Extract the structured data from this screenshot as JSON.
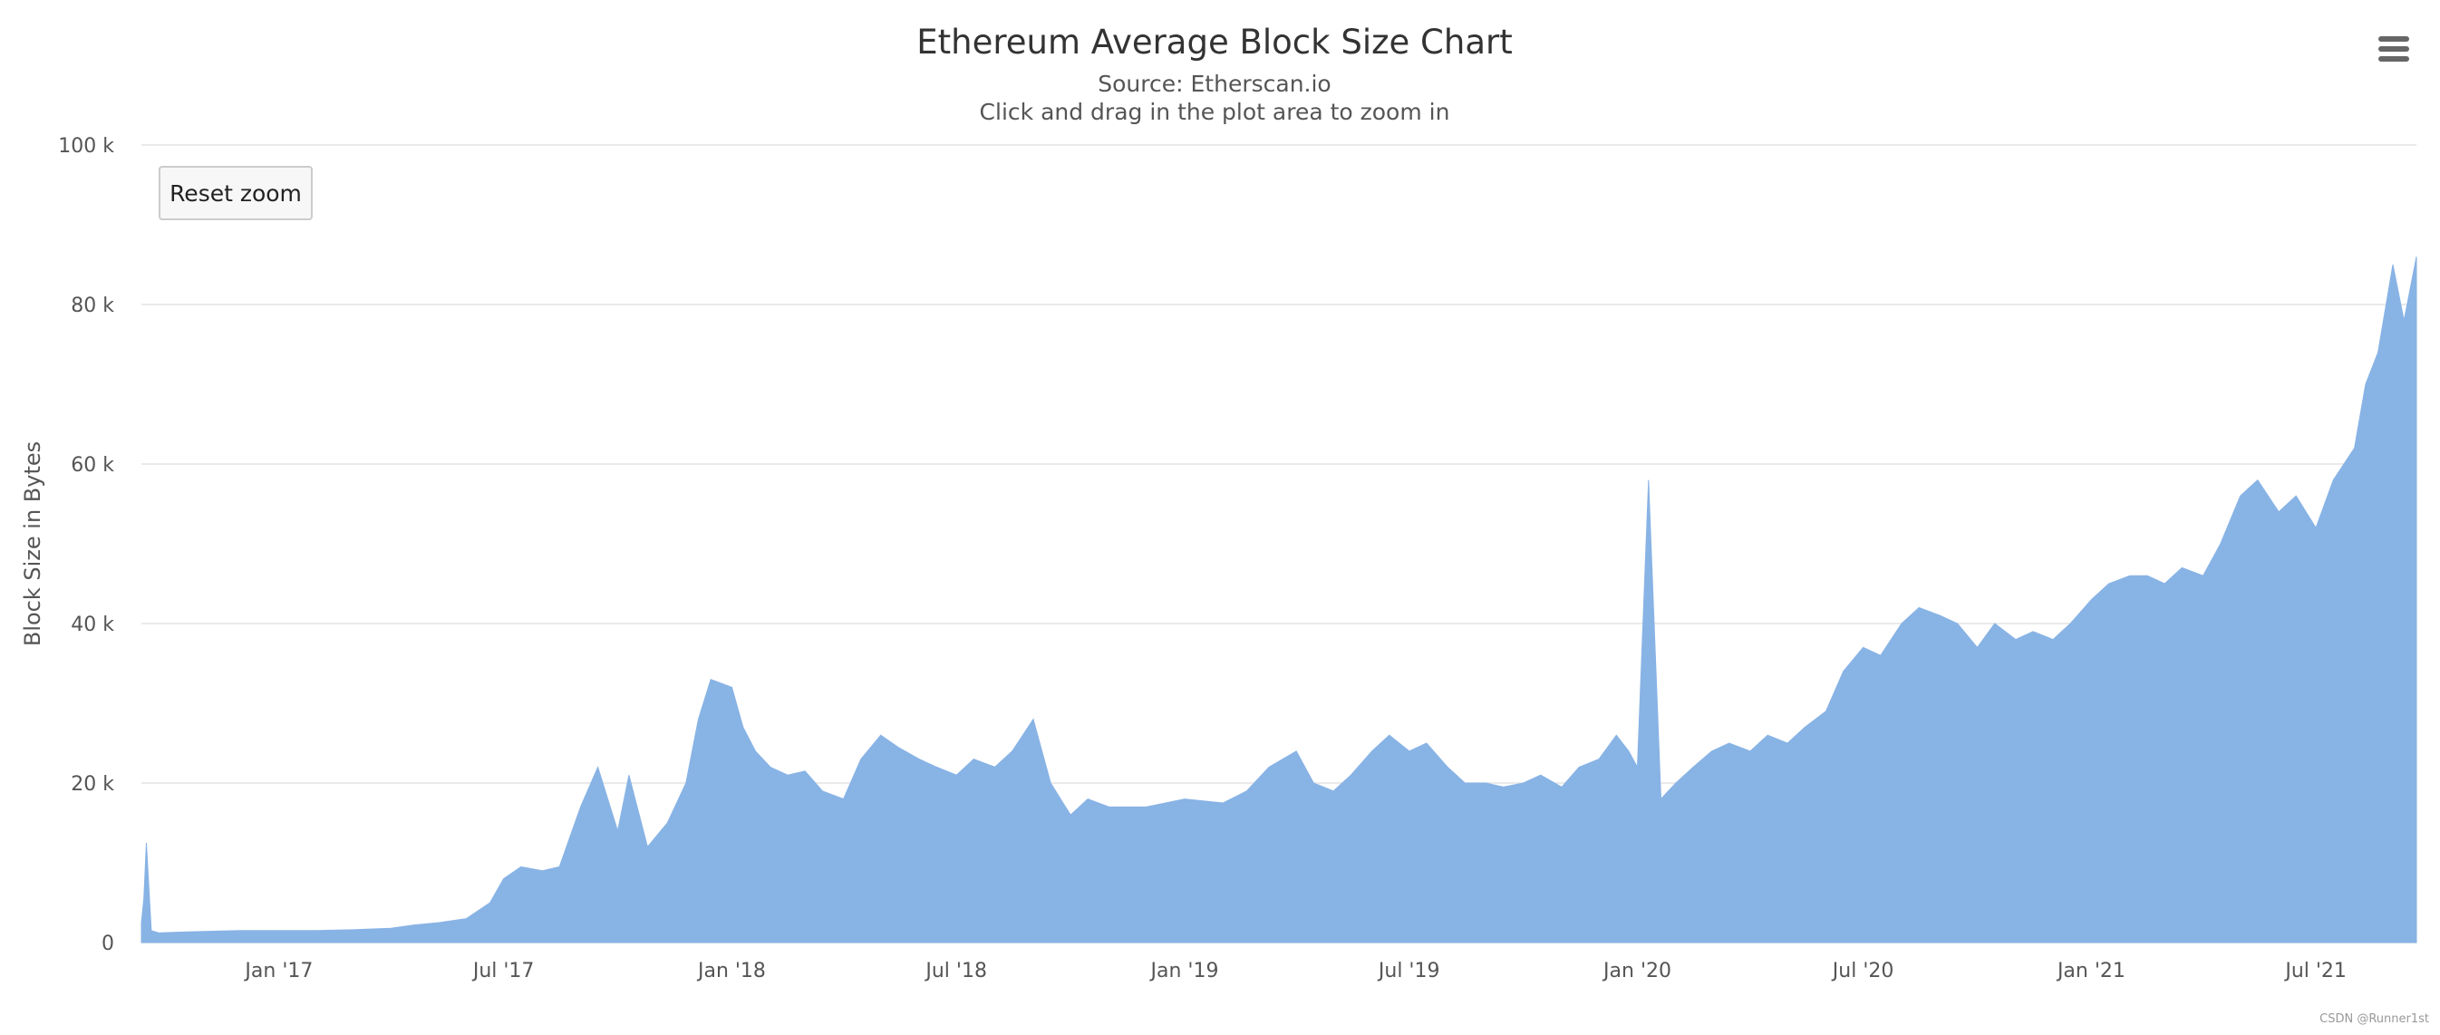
{
  "chart_data": {
    "type": "bar",
    "title": "Ethereum Average Block Size Chart",
    "subtitle": "Source: Etherscan.io",
    "instruction": "Click and drag in the plot area to zoom in",
    "xlabel": "",
    "ylabel": "Block Size in Bytes",
    "ylim": [
      0,
      100000
    ],
    "y_ticks": [
      "0",
      "20 k",
      "40 k",
      "60 k",
      "80 k",
      "100 k"
    ],
    "y_tick_values": [
      0,
      20000,
      40000,
      60000,
      80000,
      100000
    ],
    "x_range": [
      "2016-09-12",
      "2021-09-20"
    ],
    "x_ticks": [
      {
        "date": "2017-01-01",
        "label": "Jan '17"
      },
      {
        "date": "2017-07-01",
        "label": "Jul '17"
      },
      {
        "date": "2018-01-01",
        "label": "Jan '18"
      },
      {
        "date": "2018-07-01",
        "label": "Jul '18"
      },
      {
        "date": "2019-01-01",
        "label": "Jan '19"
      },
      {
        "date": "2019-07-01",
        "label": "Jul '19"
      },
      {
        "date": "2020-01-01",
        "label": "Jan '20"
      },
      {
        "date": "2020-07-01",
        "label": "Jul '20"
      },
      {
        "date": "2021-01-01",
        "label": "Jan '21"
      },
      {
        "date": "2021-07-01",
        "label": "Jul '21"
      }
    ],
    "bar_color": "#88b3e5",
    "grid": true,
    "legend": "none",
    "series": [
      {
        "x": [
          "2016-09-12",
          "2016-09-14",
          "2016-09-16",
          "2016-09-20",
          "2016-09-26",
          "2016-10-10",
          "2016-11-01",
          "2016-12-01",
          "2017-01-01",
          "2017-02-01",
          "2017-03-01",
          "2017-04-01",
          "2017-04-20",
          "2017-05-10",
          "2017-06-01",
          "2017-06-20",
          "2017-07-01",
          "2017-07-15",
          "2017-08-01",
          "2017-08-15",
          "2017-09-01",
          "2017-09-15",
          "2017-10-01",
          "2017-10-10",
          "2017-10-25",
          "2017-11-10",
          "2017-11-25",
          "2017-12-05",
          "2017-12-15",
          "2018-01-01",
          "2018-01-10",
          "2018-01-20",
          "2018-02-01",
          "2018-02-15",
          "2018-03-01",
          "2018-03-15",
          "2018-04-01",
          "2018-04-15",
          "2018-05-01",
          "2018-05-15",
          "2018-06-01",
          "2018-06-15",
          "2018-07-01",
          "2018-07-15",
          "2018-08-01",
          "2018-08-15",
          "2018-09-01",
          "2018-09-15",
          "2018-10-01",
          "2018-10-15",
          "2018-11-01",
          "2018-12-01",
          "2019-01-01",
          "2019-02-01",
          "2019-02-20",
          "2019-03-10",
          "2019-04-01",
          "2019-04-15",
          "2019-05-01",
          "2019-05-15",
          "2019-06-01",
          "2019-06-15",
          "2019-07-01",
          "2019-07-15",
          "2019-08-01",
          "2019-08-15",
          "2019-09-01",
          "2019-09-15",
          "2019-10-01",
          "2019-10-15",
          "2019-11-01",
          "2019-11-15",
          "2019-12-01",
          "2019-12-15",
          "2019-12-25",
          "2020-01-01",
          "2020-01-10",
          "2020-01-20",
          "2020-02-01",
          "2020-02-15",
          "2020-03-01",
          "2020-03-15",
          "2020-04-01",
          "2020-04-15",
          "2020-05-01",
          "2020-05-15",
          "2020-06-01",
          "2020-06-15",
          "2020-07-01",
          "2020-07-15",
          "2020-08-01",
          "2020-08-15",
          "2020-09-01",
          "2020-09-15",
          "2020-10-01",
          "2020-10-15",
          "2020-11-01",
          "2020-11-15",
          "2020-12-01",
          "2020-12-15",
          "2021-01-01",
          "2021-01-15",
          "2021-02-01",
          "2021-02-15",
          "2021-03-01",
          "2021-03-15",
          "2021-04-01",
          "2021-04-15",
          "2021-05-01",
          "2021-05-15",
          "2021-06-01",
          "2021-06-15",
          "2021-07-01",
          "2021-07-15",
          "2021-08-01",
          "2021-08-10",
          "2021-08-20",
          "2021-09-01",
          "2021-09-10",
          "2021-09-20"
        ],
        "y": [
          2500,
          5500,
          12500,
          1500,
          1200,
          1300,
          1400,
          1500,
          1500,
          1500,
          1600,
          1800,
          2200,
          2500,
          3000,
          5000,
          8000,
          9500,
          9000,
          9500,
          17000,
          22000,
          14000,
          21000,
          12000,
          15000,
          20000,
          28000,
          33000,
          32000,
          27000,
          24000,
          22000,
          21000,
          21500,
          19000,
          18000,
          23000,
          26000,
          24500,
          23000,
          22000,
          21000,
          23000,
          22000,
          24000,
          28000,
          20000,
          16000,
          18000,
          17000,
          17000,
          18000,
          17500,
          19000,
          22000,
          24000,
          20000,
          19000,
          21000,
          24000,
          26000,
          24000,
          25000,
          22000,
          20000,
          20000,
          19500,
          20000,
          21000,
          19500,
          22000,
          23000,
          26000,
          24000,
          22000,
          58000,
          18000,
          20000,
          22000,
          24000,
          25000,
          24000,
          26000,
          25000,
          27000,
          29000,
          34000,
          37000,
          36000,
          40000,
          42000,
          41000,
          40000,
          37000,
          40000,
          38000,
          39000,
          38000,
          40000,
          43000,
          45000,
          46000,
          46000,
          45000,
          47000,
          46000,
          50000,
          56000,
          58000,
          54000,
          56000,
          52000,
          58000,
          62000,
          70000,
          74000,
          85000,
          78000,
          86000
        ]
      }
    ]
  },
  "controls": {
    "reset_zoom_label": "Reset zoom",
    "menu_icon": "hamburger-menu-icon"
  },
  "credit": "CSDN @Runner1st"
}
